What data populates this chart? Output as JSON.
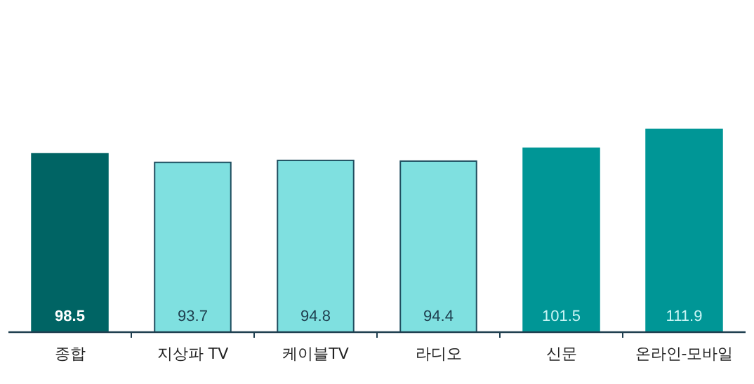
{
  "chart_data": {
    "type": "bar",
    "categories": [
      "종합",
      "지상파 TV",
      "케이블TV",
      "라디오",
      "신문",
      "온라인-모바일"
    ],
    "values": [
      98.5,
      93.7,
      94.8,
      94.4,
      101.5,
      111.9
    ],
    "colors": [
      "#006464",
      "#7fe0e0",
      "#7fe0e0",
      "#7fe0e0",
      "#009696",
      "#009696"
    ],
    "data_labels": true
  }
}
